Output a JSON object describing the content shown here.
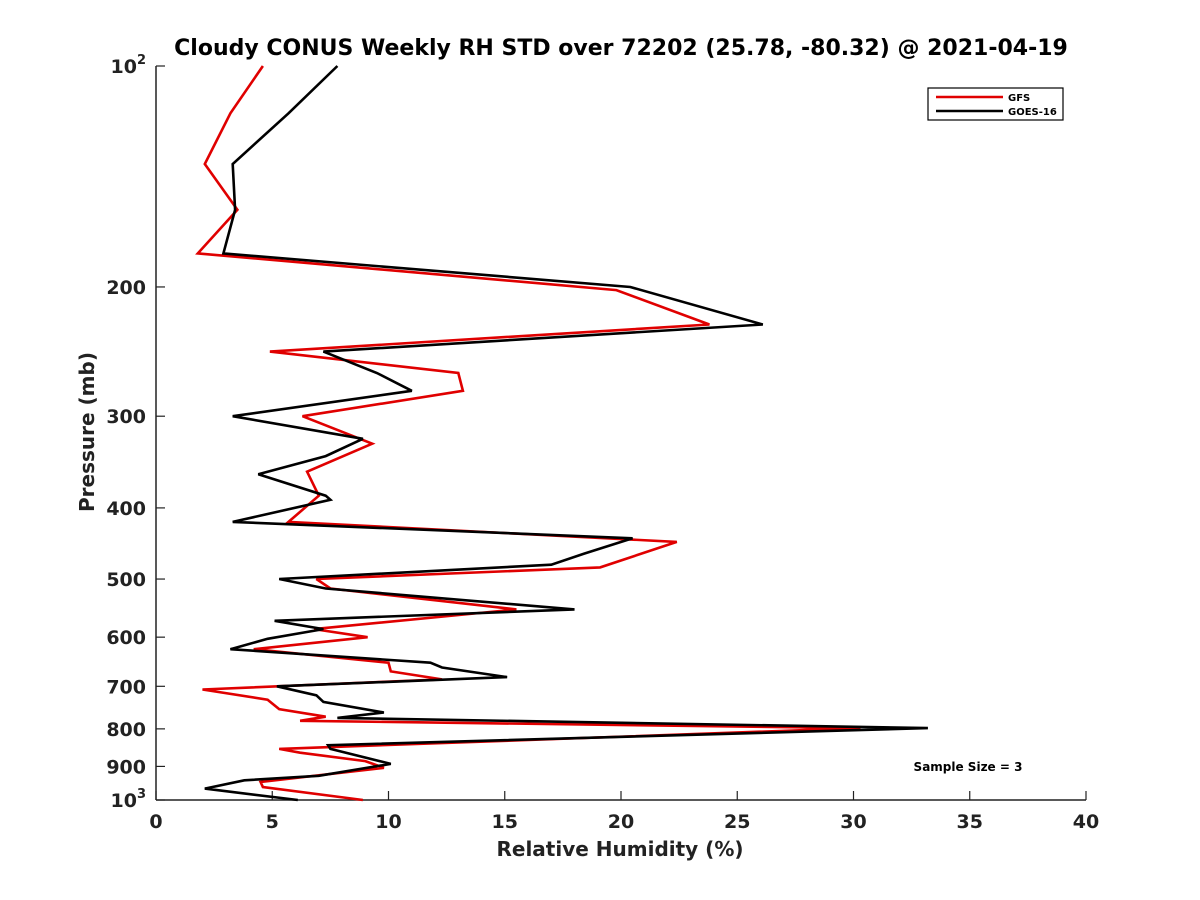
{
  "chart_data": {
    "type": "line",
    "title": "Cloudy CONUS Weekly RH STD over 72202 (25.78, -80.32) @ 2021-04-19",
    "xlabel": "Relative Humidity (%)",
    "ylabel": "Pressure (mb)",
    "xlim": [
      0,
      40
    ],
    "ylim": [
      100,
      1000
    ],
    "yscale": "log",
    "y_reversed": true,
    "xticks": [
      0,
      5,
      10,
      15,
      20,
      25,
      30,
      35,
      40
    ],
    "yticks": [
      {
        "value": 100,
        "base": "10",
        "exp": "2"
      },
      {
        "value": 200,
        "label": "200"
      },
      {
        "value": 300,
        "label": "300"
      },
      {
        "value": 400,
        "label": "400"
      },
      {
        "value": 500,
        "label": "500"
      },
      {
        "value": 600,
        "label": "600"
      },
      {
        "value": 700,
        "label": "700"
      },
      {
        "value": 800,
        "label": "800"
      },
      {
        "value": 900,
        "label": "900"
      },
      {
        "value": 1000,
        "base": "10",
        "exp": "3"
      }
    ],
    "legend_position": "top-right",
    "annotation": "Sample Size = 3",
    "series": [
      {
        "name": "GFS",
        "color": "#e00000",
        "points": [
          [
            4.6,
            100
          ],
          [
            3.2,
            116
          ],
          [
            2.1,
            136
          ],
          [
            3.5,
            157
          ],
          [
            1.8,
            180
          ],
          [
            19.8,
            202
          ],
          [
            23.8,
            225
          ],
          [
            4.9,
            245
          ],
          [
            13.0,
            262
          ],
          [
            13.2,
            277
          ],
          [
            6.3,
            300
          ],
          [
            9.3,
            327
          ],
          [
            6.5,
            357
          ],
          [
            7.0,
            385
          ],
          [
            5.7,
            418
          ],
          [
            22.4,
            445
          ],
          [
            19.1,
            482
          ],
          [
            6.9,
            500
          ],
          [
            7.5,
            515
          ],
          [
            15.5,
            550
          ],
          [
            6.8,
            585
          ],
          [
            9.1,
            600
          ],
          [
            4.2,
            623
          ],
          [
            10.0,
            650
          ],
          [
            10.1,
            668
          ],
          [
            12.3,
            685
          ],
          [
            2.0,
            707
          ],
          [
            4.8,
            730
          ],
          [
            5.3,
            752
          ],
          [
            7.3,
            770
          ],
          [
            6.2,
            780
          ],
          [
            30.3,
            798
          ],
          [
            5.3,
            852
          ],
          [
            6.2,
            862
          ],
          [
            9.0,
            885
          ],
          [
            9.8,
            904
          ],
          [
            4.5,
            945
          ],
          [
            4.6,
            960
          ],
          [
            8.9,
            1000
          ]
        ]
      },
      {
        "name": "GOES-16",
        "color": "#000000",
        "points": [
          [
            7.8,
            100
          ],
          [
            5.7,
            116
          ],
          [
            3.3,
            136
          ],
          [
            3.4,
            157
          ],
          [
            2.9,
            180
          ],
          [
            20.4,
            200
          ],
          [
            26.1,
            225
          ],
          [
            7.2,
            245
          ],
          [
            9.5,
            262
          ],
          [
            11.0,
            277
          ],
          [
            3.3,
            300
          ],
          [
            8.9,
            322
          ],
          [
            7.3,
            340
          ],
          [
            4.4,
            360
          ],
          [
            7.3,
            385
          ],
          [
            7.5,
            390
          ],
          [
            3.3,
            418
          ],
          [
            20.5,
            440
          ],
          [
            18.4,
            462
          ],
          [
            17.0,
            478
          ],
          [
            5.3,
            500
          ],
          [
            7.3,
            515
          ],
          [
            18.0,
            550
          ],
          [
            5.1,
            570
          ],
          [
            7.2,
            585
          ],
          [
            4.8,
            603
          ],
          [
            3.2,
            623
          ],
          [
            11.8,
            650
          ],
          [
            12.3,
            660
          ],
          [
            15.1,
            680
          ],
          [
            5.2,
            700
          ],
          [
            6.9,
            720
          ],
          [
            7.2,
            735
          ],
          [
            9.8,
            760
          ],
          [
            7.8,
            773
          ],
          [
            33.2,
            798
          ],
          [
            7.4,
            842
          ],
          [
            7.5,
            852
          ],
          [
            10.1,
            893
          ],
          [
            7.0,
            927
          ],
          [
            3.8,
            940
          ],
          [
            2.1,
            965
          ],
          [
            6.1,
            1000
          ]
        ]
      }
    ]
  }
}
